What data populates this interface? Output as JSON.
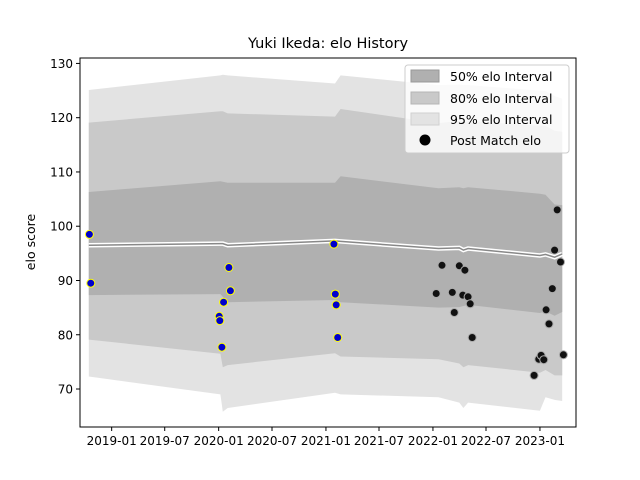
{
  "chart_data": {
    "type": "line",
    "title": "Yuki Ikeda: elo History",
    "xlabel": "",
    "ylabel": "elo score",
    "xlim": [
      "2018-09-15",
      "2023-05-04"
    ],
    "ylim": [
      63,
      131
    ],
    "x_ticks": [
      "2019-01",
      "2019-07",
      "2020-01",
      "2020-07",
      "2021-01",
      "2021-07",
      "2022-01",
      "2022-07",
      "2023-01"
    ],
    "x_tick_dates": [
      "2019-01-01",
      "2019-07-01",
      "2020-01-01",
      "2020-07-01",
      "2021-01-01",
      "2021-07-01",
      "2022-01-01",
      "2022-07-01",
      "2023-01-01"
    ],
    "y_ticks": [
      70,
      80,
      90,
      100,
      110,
      120,
      130
    ],
    "grid": false,
    "legend_position": "top-right",
    "legend": [
      "50% elo Interval",
      "80% elo Interval",
      "95% elo Interval",
      "Post Match elo"
    ],
    "colors": {
      "band50": "#b0b0b0",
      "band80": "#c9c9c9",
      "band95": "#e3e3e3",
      "mean_line": "#888888",
      "mean_halo": "#ffffff",
      "point_early_fill": "#0000cc",
      "point_early_edge": "#ffff00",
      "point_late_fill": "#111111",
      "point_late_edge": "#aaaaaa"
    },
    "intervals": {
      "x": [
        "2018-10-15",
        "2020-01-07",
        "2020-01-15",
        "2020-02-01",
        "2021-02-01",
        "2021-02-20",
        "2022-01-20",
        "2022-04-01",
        "2022-04-15",
        "2022-05-01",
        "2023-01-01",
        "2023-01-20",
        "2023-02-20",
        "2023-03-18"
      ],
      "mean": [
        96.5,
        96.8,
        96.8,
        96.5,
        97.3,
        97.2,
        95.9,
        96.0,
        95.6,
        95.9,
        94.6,
        94.8,
        94.3,
        94.9
      ],
      "lo50": [
        87.3,
        87.5,
        87.0,
        86.0,
        86.4,
        86.0,
        85.0,
        85.1,
        85.3,
        85.5,
        84.0,
        84.3,
        83.5,
        84.2
      ],
      "hi50": [
        106.3,
        108.3,
        108.2,
        108.0,
        108.0,
        109.2,
        107.0,
        107.2,
        107.0,
        107.2,
        106.0,
        105.8,
        104.0,
        103.9
      ],
      "lo80": [
        79.1,
        76.5,
        74.0,
        74.4,
        76.6,
        76.0,
        75.5,
        74.7,
        74.0,
        74.4,
        73.0,
        73.5,
        72.5,
        72.5
      ],
      "hi80": [
        119.1,
        121.2,
        121.2,
        120.8,
        120.2,
        121.6,
        119.0,
        119.4,
        119.0,
        119.4,
        118.5,
        118.5,
        117.6,
        117.4
      ],
      "lo95": [
        72.3,
        69.0,
        65.8,
        66.5,
        69.3,
        69.0,
        68.5,
        67.5,
        66.5,
        67.5,
        66.0,
        68.5,
        68.0,
        67.8
      ],
      "hi95": [
        125.1,
        127.8,
        127.9,
        127.8,
        126.3,
        127.8,
        126.0,
        126.1,
        126.0,
        126.0,
        125.0,
        124.9,
        124.0,
        123.5
      ]
    },
    "series": [
      {
        "name": "Post Match elo",
        "x": [
          "2018-10-17",
          "2018-10-22",
          "2020-01-03",
          "2020-01-12",
          "2020-01-05",
          "2020-01-18",
          "2020-02-05",
          "2020-02-10",
          "2021-01-28",
          "2021-02-02",
          "2021-02-05",
          "2021-02-10",
          "2022-01-12",
          "2022-02-01",
          "2022-03-08",
          "2022-03-15",
          "2022-04-01",
          "2022-04-13",
          "2022-04-20",
          "2022-05-01",
          "2022-05-08",
          "2022-12-12",
          "2022-12-28",
          "2023-01-05",
          "2023-01-14",
          "2023-01-22",
          "2023-02-01",
          "2023-02-12",
          "2023-02-20",
          "2023-03-01",
          "2023-03-12"
        ],
        "y": [
          98.5,
          89.5,
          83.4,
          77.7,
          82.6,
          86.0,
          92.4,
          88.1,
          96.7,
          87.5,
          85.5,
          79.5,
          87.6,
          92.8,
          87.8,
          84.1,
          92.7,
          87.3,
          91.9,
          87.0,
          85.7,
          72.5,
          75.5,
          76.2,
          75.4,
          84.6,
          82.0,
          88.5,
          95.6,
          103.0,
          93.4
        ],
        "x_late": [
          "2022-05-15",
          "2023-03-22"
        ],
        "y_late": [
          79.5,
          76.3
        ]
      }
    ]
  }
}
